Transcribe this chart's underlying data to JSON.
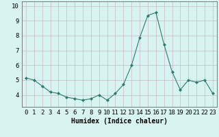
{
  "x": [
    0,
    1,
    2,
    3,
    4,
    5,
    6,
    7,
    8,
    9,
    10,
    11,
    12,
    13,
    14,
    15,
    16,
    17,
    18,
    19,
    20,
    21,
    22,
    23
  ],
  "y": [
    5.15,
    5.0,
    4.6,
    4.2,
    4.1,
    3.85,
    3.75,
    3.65,
    3.75,
    4.0,
    3.65,
    4.1,
    4.7,
    6.0,
    7.85,
    9.35,
    9.55,
    7.4,
    5.55,
    4.35,
    5.0,
    4.85,
    5.0,
    4.1
  ],
  "line_color": "#2d7a6e",
  "marker": "D",
  "marker_size": 2,
  "bg_color": "#d8f4f0",
  "grid_color": "#c8b8c8",
  "xlabel": "Humidex (Indice chaleur)",
  "ylim": [
    3.2,
    10.3
  ],
  "xlim": [
    -0.5,
    23.5
  ],
  "yticks": [
    4,
    5,
    6,
    7,
    8,
    9,
    10
  ],
  "xticks": [
    0,
    1,
    2,
    3,
    4,
    5,
    6,
    7,
    8,
    9,
    10,
    11,
    12,
    13,
    14,
    15,
    16,
    17,
    18,
    19,
    20,
    21,
    22,
    23
  ],
  "xlabel_fontsize": 7,
  "tick_fontsize": 6.5
}
